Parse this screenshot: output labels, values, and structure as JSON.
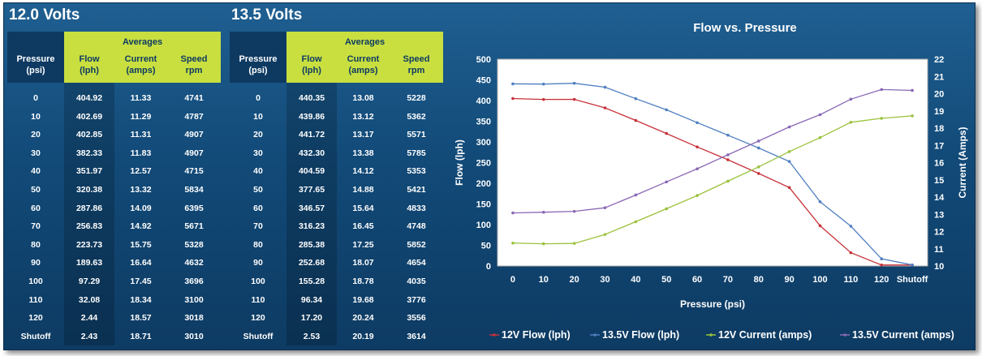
{
  "tables": [
    {
      "title": "12.0 Volts",
      "group_header": "Averages",
      "headers": {
        "pressure": [
          "Pressure",
          "(psi)"
        ],
        "flow": [
          "Flow",
          "(lph)"
        ],
        "current": [
          "Current",
          "(amps)"
        ],
        "speed": [
          "Speed",
          "rpm"
        ]
      },
      "rows": [
        [
          "0",
          "404.92",
          "11.33",
          "4741"
        ],
        [
          "10",
          "402.69",
          "11.29",
          "4787"
        ],
        [
          "20",
          "402.85",
          "11.31",
          "4907"
        ],
        [
          "30",
          "382.33",
          "11.83",
          "4907"
        ],
        [
          "40",
          "351.97",
          "12.57",
          "4715"
        ],
        [
          "50",
          "320.38",
          "13.32",
          "5834"
        ],
        [
          "60",
          "287.86",
          "14.09",
          "6395"
        ],
        [
          "70",
          "256.83",
          "14.92",
          "5671"
        ],
        [
          "80",
          "223.73",
          "15.75",
          "5328"
        ],
        [
          "90",
          "189.63",
          "16.64",
          "4632"
        ],
        [
          "100",
          "97.29",
          "17.45",
          "3696"
        ],
        [
          "110",
          "32.08",
          "18.34",
          "3100"
        ],
        [
          "120",
          "2.44",
          "18.57",
          "3018"
        ],
        [
          "Shutoff",
          "2.43",
          "18.71",
          "3010"
        ]
      ]
    },
    {
      "title": "13.5 Volts",
      "group_header": "Averages",
      "headers": {
        "pressure": [
          "Pressure",
          "(psi)"
        ],
        "flow": [
          "Flow",
          "(lph)"
        ],
        "current": [
          "Current",
          "(amps)"
        ],
        "speed": [
          "Speed",
          "rpm"
        ]
      },
      "rows": [
        [
          "0",
          "440.35",
          "13.08",
          "5228"
        ],
        [
          "10",
          "439.86",
          "13.12",
          "5362"
        ],
        [
          "20",
          "441.72",
          "13.17",
          "5571"
        ],
        [
          "30",
          "432.30",
          "13.38",
          "5785"
        ],
        [
          "40",
          "404.59",
          "14.12",
          "5353"
        ],
        [
          "50",
          "377.65",
          "14.88",
          "5421"
        ],
        [
          "60",
          "346.57",
          "15.64",
          "4833"
        ],
        [
          "70",
          "316.23",
          "16.45",
          "4748"
        ],
        [
          "80",
          "285.38",
          "17.25",
          "5852"
        ],
        [
          "90",
          "252.68",
          "18.07",
          "4654"
        ],
        [
          "100",
          "155.28",
          "18.78",
          "4035"
        ],
        [
          "110",
          "96.34",
          "19.68",
          "3776"
        ],
        [
          "120",
          "17.20",
          "20.24",
          "3556"
        ],
        [
          "Shutoff",
          "2.53",
          "20.19",
          "3614"
        ]
      ]
    }
  ],
  "chart_data": {
    "type": "line",
    "title": "Flow vs. Pressure",
    "xlabel": "Pressure (psi)",
    "ylabel": "Flow (lph)",
    "y2label": "Current (Amps)",
    "categories": [
      "0",
      "10",
      "20",
      "30",
      "40",
      "50",
      "60",
      "70",
      "80",
      "90",
      "100",
      "110",
      "120",
      "Shutoff"
    ],
    "ylim": [
      0,
      500
    ],
    "yticks": [
      "0",
      "50",
      "100",
      "150",
      "200",
      "250",
      "300",
      "350",
      "400",
      "450",
      "500"
    ],
    "y2lim": [
      10,
      22
    ],
    "y2ticks": [
      "10",
      "11",
      "12",
      "13",
      "14",
      "15",
      "16",
      "17",
      "18",
      "19",
      "20",
      "21",
      "22"
    ],
    "grid": false,
    "legend": "bottom",
    "series": [
      {
        "name": "12V Flow (lph)",
        "axis": "left",
        "color": "#c8323a",
        "values": [
          404.92,
          402.69,
          402.85,
          382.33,
          351.97,
          320.38,
          287.86,
          256.83,
          223.73,
          189.63,
          97.29,
          32.08,
          2.44,
          2.43
        ]
      },
      {
        "name": "13.5V Flow (lph)",
        "axis": "left",
        "color": "#4f7fc0",
        "values": [
          440.35,
          439.86,
          441.72,
          432.3,
          404.59,
          377.65,
          346.57,
          316.23,
          285.38,
          252.68,
          155.28,
          96.34,
          17.2,
          2.53
        ]
      },
      {
        "name": "12V Current (amps)",
        "axis": "right",
        "color": "#9bc23c",
        "values": [
          11.33,
          11.29,
          11.31,
          11.83,
          12.57,
          13.32,
          14.09,
          14.92,
          15.75,
          16.64,
          17.45,
          18.34,
          18.57,
          18.71
        ]
      },
      {
        "name": "13.5V Current (amps)",
        "axis": "right",
        "color": "#8a68b5",
        "values": [
          13.08,
          13.12,
          13.17,
          13.38,
          14.12,
          14.88,
          15.64,
          16.45,
          17.25,
          18.07,
          18.78,
          19.68,
          20.24,
          20.19
        ]
      }
    ]
  }
}
